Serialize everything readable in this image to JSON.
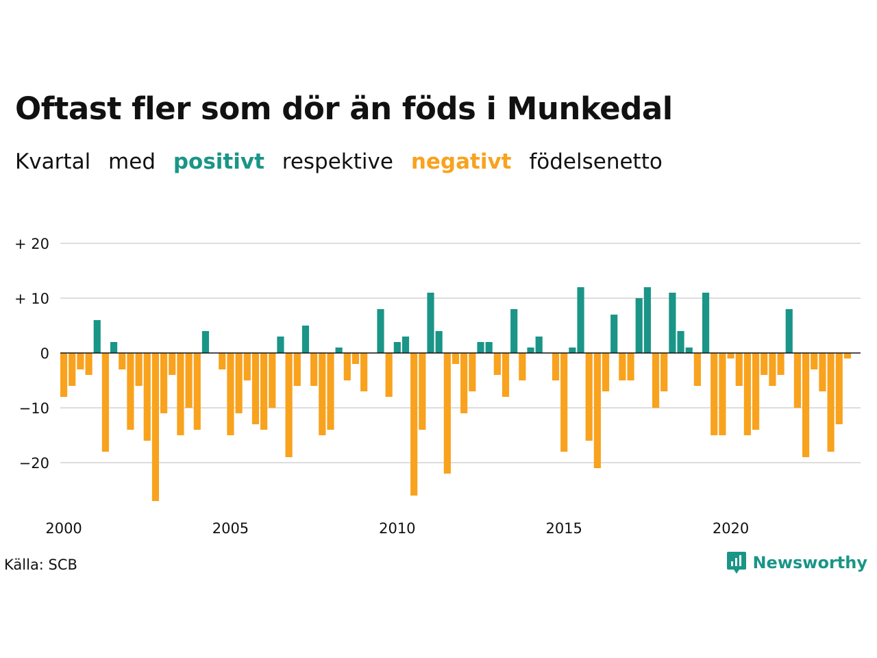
{
  "title": "Oftast fler som dör än föds i Munkedal",
  "subtitle": {
    "part1": "Kvartal",
    "part2": "med",
    "positive_word": "positivt",
    "part3": "respektive",
    "negative_word": "negativt",
    "part4": "födelsenetto"
  },
  "source": "Källa: SCB",
  "brand": {
    "name": "Newsworthy",
    "icon": "newsworthy-logo-icon"
  },
  "colors": {
    "positive": "#1a9587",
    "negative": "#f8a21e",
    "grid": "#dddddd",
    "text": "#111111"
  },
  "chart_data": {
    "type": "bar",
    "title": "",
    "xlabel": "",
    "ylabel": "",
    "ylim": [
      -30,
      20
    ],
    "yticks": [
      20,
      10,
      0,
      -10,
      -20
    ],
    "ytick_labels": [
      "+ 20",
      "+ 10",
      "0",
      "−10",
      "−20"
    ],
    "xlim": [
      2000,
      2023.75
    ],
    "xticks": [
      2000,
      2005,
      2010,
      2015,
      2020
    ],
    "xtick_labels": [
      "2000",
      "2005",
      "2010",
      "2015",
      "2020"
    ],
    "grid": true,
    "legend": "none",
    "series": [
      {
        "start": "2000 Q1",
        "x": [
          2000.0,
          2000.25,
          2000.5,
          2000.75,
          2001.0,
          2001.25,
          2001.5,
          2001.75,
          2002.0,
          2002.25,
          2002.5,
          2002.75,
          2003.0,
          2003.25,
          2003.5,
          2003.75,
          2004.0,
          2004.25,
          2004.5,
          2004.75,
          2005.0,
          2005.25,
          2005.5,
          2005.75,
          2006.0,
          2006.25,
          2006.5,
          2006.75,
          2007.0,
          2007.25,
          2007.5,
          2007.75,
          2008.0,
          2008.25,
          2008.5,
          2008.75,
          2009.0,
          2009.25,
          2009.5,
          2009.75,
          2010.0,
          2010.25,
          2010.5,
          2010.75,
          2011.0,
          2011.25,
          2011.5,
          2011.75,
          2012.0,
          2012.25,
          2012.5,
          2012.75,
          2013.0,
          2013.25,
          2013.5,
          2013.75,
          2014.0,
          2014.25,
          2014.5,
          2014.75,
          2015.0,
          2015.25,
          2015.5,
          2015.75,
          2016.0,
          2016.25,
          2016.5,
          2016.75,
          2017.0,
          2017.25,
          2017.5,
          2017.75,
          2018.0,
          2018.25,
          2018.5,
          2018.75,
          2019.0,
          2019.25,
          2019.5,
          2019.75,
          2020.0,
          2020.25,
          2020.5,
          2020.75,
          2021.0,
          2021.25,
          2021.5,
          2021.75,
          2022.0,
          2022.25,
          2022.5,
          2022.75,
          2023.0,
          2023.25,
          2023.5
        ],
        "values": [
          -8,
          -6,
          -3,
          -4,
          6,
          -18,
          2,
          -3,
          -14,
          -6,
          -16,
          -27,
          -11,
          -4,
          -15,
          -10,
          -14,
          4,
          0,
          -3,
          -15,
          -11,
          -5,
          -13,
          -14,
          -10,
          3,
          -19,
          -6,
          5,
          -6,
          -15,
          -14,
          1,
          -5,
          -2,
          -7,
          0,
          8,
          -8,
          2,
          3,
          -26,
          -14,
          11,
          4,
          -22,
          -2,
          -11,
          -7,
          2,
          2,
          -4,
          -8,
          8,
          -5,
          1,
          3,
          0,
          -5,
          -18,
          1,
          12,
          -16,
          -21,
          -7,
          7,
          -5,
          -5,
          10,
          12,
          -10,
          -7,
          11,
          4,
          1,
          -6,
          11,
          -15,
          -15,
          -1,
          -6,
          -15,
          -14,
          -4,
          -6,
          -4,
          8,
          -10,
          -19,
          -3,
          -7,
          -18,
          -13,
          -1
        ]
      }
    ]
  }
}
